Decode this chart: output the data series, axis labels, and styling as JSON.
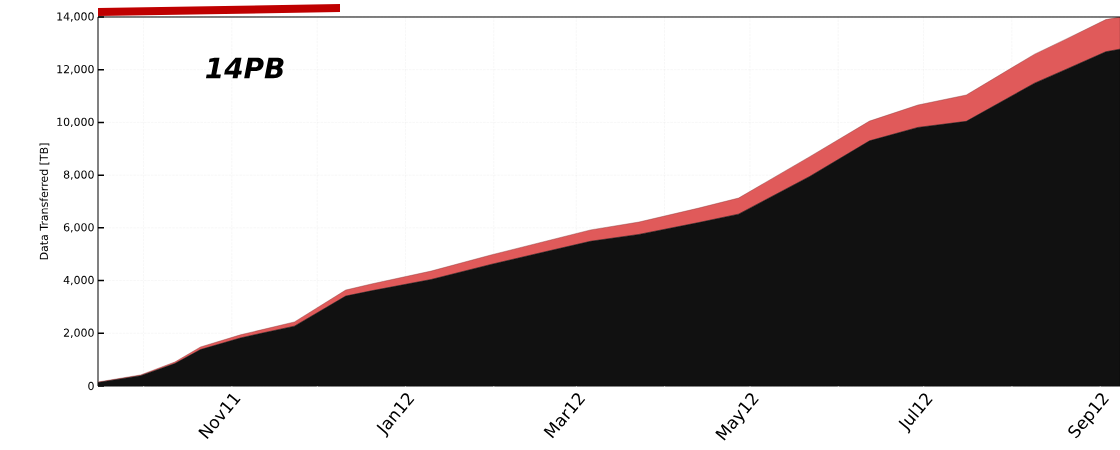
{
  "chart_data": {
    "type": "area",
    "stacked": true,
    "ylabel": "Data Transferred [TB]",
    "annotations": [
      "14PB"
    ],
    "grid": true,
    "x": [
      "2011-09-15",
      "2011-09-30",
      "2011-10-12",
      "2011-10-21",
      "2011-11-04",
      "2011-11-11",
      "2011-11-23",
      "2011-12-11",
      "2011-12-20",
      "2012-01-10",
      "2012-01-31",
      "2012-02-21",
      "2012-03-06",
      "2012-03-23",
      "2012-04-13",
      "2012-04-27",
      "2012-05-22",
      "2012-06-12",
      "2012-06-29",
      "2012-07-16",
      "2012-08-09",
      "2012-08-20",
      "2012-09-03",
      "2012-09-08"
    ],
    "series": [
      {
        "color": "#111111",
        "values": [
          130,
          390,
          850,
          1380,
          1820,
          1990,
          2270,
          3410,
          3610,
          4040,
          4610,
          5140,
          5490,
          5750,
          6200,
          6520,
          7950,
          9300,
          9810,
          10040,
          11490,
          12010,
          12680,
          12780
        ]
      },
      {
        "color": "#e05a5a",
        "values": [
          20,
          30,
          60,
          100,
          120,
          130,
          160,
          230,
          260,
          320,
          360,
          400,
          430,
          470,
          550,
          610,
          750,
          750,
          850,
          1000,
          1100,
          1150,
          1220,
          1220
        ]
      }
    ],
    "xlim": [
      "2011-09-15",
      "2012-09-08"
    ],
    "xticks": [
      {
        "value": "2011-10-01",
        "label": null
      },
      {
        "value": "2011-11-01",
        "label": "Nov11"
      },
      {
        "value": "2011-12-01",
        "label": null
      },
      {
        "value": "2012-01-01",
        "label": "Jan12"
      },
      {
        "value": "2012-02-01",
        "label": null
      },
      {
        "value": "2012-03-01",
        "label": "Mar12"
      },
      {
        "value": "2012-04-01",
        "label": null
      },
      {
        "value": "2012-05-01",
        "label": "May12"
      },
      {
        "value": "2012-06-01",
        "label": null
      },
      {
        "value": "2012-07-01",
        "label": "Jul12"
      },
      {
        "value": "2012-08-01",
        "label": null
      },
      {
        "value": "2012-09-01",
        "label": "Sep12"
      }
    ],
    "ylim": [
      0,
      14000
    ],
    "yticks": [
      {
        "value": 0,
        "label": "0"
      },
      {
        "value": 2000,
        "label": "2,000"
      },
      {
        "value": 4000,
        "label": "4,000"
      },
      {
        "value": 6000,
        "label": "6,000"
      },
      {
        "value": 8000,
        "label": "8,000"
      },
      {
        "value": 10000,
        "label": "10,000"
      },
      {
        "value": 12000,
        "label": "12,000"
      },
      {
        "value": 14000,
        "label": "14,000"
      }
    ]
  }
}
